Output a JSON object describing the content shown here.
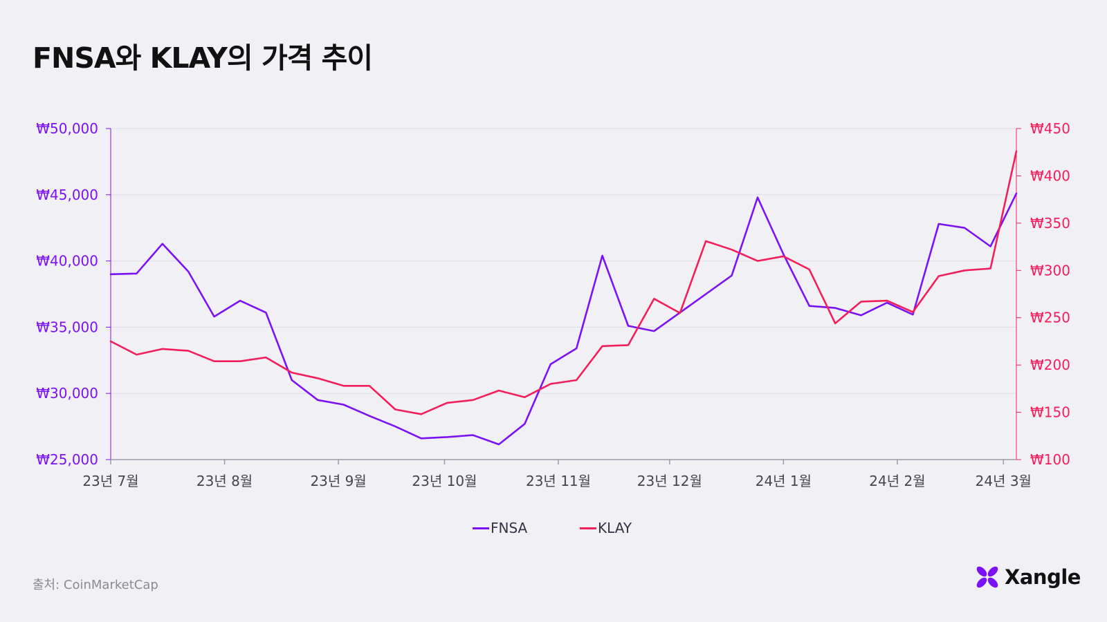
{
  "title": "FNSA와 KLAY의 가격 추이",
  "source": "출처: CoinMarketCap",
  "brand": "Xangle",
  "colors": {
    "fnsa": "#7a12f5",
    "klay": "#f21e5c",
    "grid": "#dddde4",
    "axis": "#9a9aa6"
  },
  "chart_data": {
    "type": "line",
    "title": "FNSA와 KLAY의 가격 추이",
    "x_ticks": [
      "23년 7월",
      "23년 8월",
      "23년 9월",
      "23년 10월",
      "23년 11월",
      "23년 12월",
      "24년 1월",
      "24년 2월",
      "24년 3월"
    ],
    "x_tick_index": [
      0,
      4.4,
      8.8,
      12.9,
      17.3,
      21.6,
      26,
      30.4,
      34.5
    ],
    "y_left": {
      "label_ticks": [
        "₩25,000",
        "₩30,000",
        "₩35,000",
        "₩40,000",
        "₩45,000",
        "₩50,000"
      ],
      "ticks": [
        25000,
        30000,
        35000,
        40000,
        45000,
        50000
      ],
      "ylim": [
        25000,
        50000
      ]
    },
    "y_right": {
      "label_ticks": [
        "₩100",
        "₩150",
        "₩200",
        "₩250",
        "₩300",
        "₩350",
        "₩400",
        "₩450"
      ],
      "ticks": [
        100,
        150,
        200,
        250,
        300,
        350,
        400,
        450
      ],
      "ylim": [
        100,
        450
      ]
    },
    "series": [
      {
        "name": "FNSA",
        "axis": "left",
        "values": [
          39000,
          39050,
          41300,
          39200,
          35800,
          37000,
          36100,
          31000,
          29500,
          29150,
          28300,
          27500,
          26600,
          26700,
          26850,
          26150,
          27700,
          32200,
          33400,
          40400,
          35100,
          34700,
          36100,
          37500,
          38900,
          44800,
          40500,
          36600,
          36450,
          35900,
          36850,
          35950,
          42800,
          42500,
          41100,
          45100
        ]
      },
      {
        "name": "KLAY",
        "axis": "right",
        "values": [
          225,
          211,
          217,
          215,
          204,
          204,
          208,
          192,
          186,
          178,
          178,
          153,
          148,
          160,
          163,
          173,
          166,
          180,
          184,
          220,
          221,
          270,
          255,
          331,
          322,
          310,
          315,
          301,
          244,
          267,
          268,
          256,
          294,
          300,
          302,
          426
        ]
      }
    ]
  }
}
